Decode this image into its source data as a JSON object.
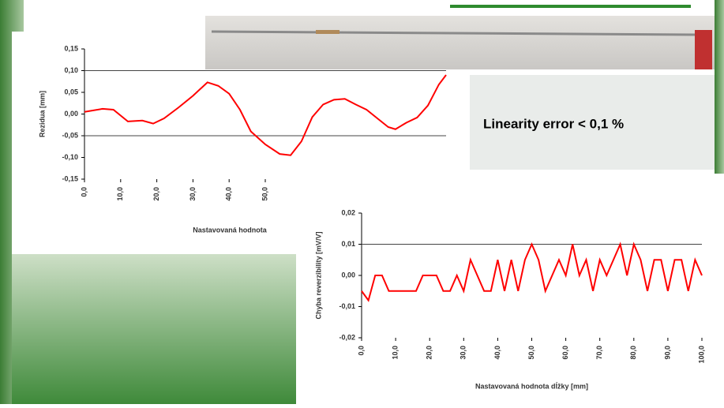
{
  "callout": "Linearity error < 0,1 %",
  "chart_data": [
    {
      "type": "line",
      "ylabel": "Rezidua [mm]",
      "xlabel": "Nastavovaná hodnota",
      "xlim": [
        0,
        100
      ],
      "ylim": [
        -0.15,
        0.15
      ],
      "xticks": [
        {
          "value": 0,
          "label": "0,0"
        },
        {
          "value": 10,
          "label": "10,0"
        },
        {
          "value": 20,
          "label": "20,0"
        },
        {
          "value": 30,
          "label": "30,0"
        },
        {
          "value": 40,
          "label": "40,0"
        },
        {
          "value": 50,
          "label": "50,0"
        }
      ],
      "yticks": [
        {
          "value": 0.15,
          "label": "0,15"
        },
        {
          "value": 0.1,
          "label": "0,10"
        },
        {
          "value": 0.05,
          "label": "0,05"
        },
        {
          "value": 0,
          "label": "0,00"
        },
        {
          "value": -0.05,
          "label": "-0,05"
        },
        {
          "value": -0.1,
          "label": "-0,10"
        },
        {
          "value": -0.15,
          "label": "-0,15"
        }
      ],
      "reference_lines": [
        0.1,
        -0.05
      ],
      "x": [
        0,
        5,
        8,
        12,
        16,
        19,
        22,
        26,
        30,
        34,
        37,
        40,
        43,
        46,
        50,
        54,
        57,
        60,
        63,
        66,
        69,
        72,
        75,
        78,
        81,
        84,
        86,
        89,
        92,
        95,
        98,
        100
      ],
      "series": [
        {
          "color": "#ff0000",
          "values": [
            0.005,
            0.012,
            0.01,
            -0.017,
            -0.015,
            -0.022,
            -0.01,
            0.015,
            0.042,
            0.073,
            0.065,
            0.047,
            0.01,
            -0.04,
            -0.07,
            -0.092,
            -0.095,
            -0.063,
            -0.007,
            0.022,
            0.033,
            0.035,
            0.022,
            0.01,
            -0.01,
            -0.03,
            -0.035,
            -0.02,
            -0.008,
            0.02,
            0.068,
            0.09
          ]
        }
      ]
    },
    {
      "type": "line",
      "ylabel": "Chyba reverzibility [mV/V]",
      "xlabel": "Nastavovaná hodnota dĺžky [mm]",
      "xlim": [
        0,
        100
      ],
      "ylim": [
        -0.02,
        0.02
      ],
      "xticks": [
        {
          "value": 0,
          "label": "0,0"
        },
        {
          "value": 10,
          "label": "10,0"
        },
        {
          "value": 20,
          "label": "20,0"
        },
        {
          "value": 30,
          "label": "30,0"
        },
        {
          "value": 40,
          "label": "40,0"
        },
        {
          "value": 50,
          "label": "50,0"
        },
        {
          "value": 60,
          "label": "60,0"
        },
        {
          "value": 70,
          "label": "70,0"
        },
        {
          "value": 80,
          "label": "80,0"
        },
        {
          "value": 90,
          "label": "90,0"
        },
        {
          "value": 100,
          "label": "100,0"
        }
      ],
      "yticks": [
        {
          "value": 0.02,
          "label": "0,02"
        },
        {
          "value": 0.01,
          "label": "0,01"
        },
        {
          "value": 0,
          "label": "0,00"
        },
        {
          "value": -0.01,
          "label": "-0,01"
        },
        {
          "value": -0.02,
          "label": "-0,02"
        }
      ],
      "reference_lines": [
        0.01
      ],
      "x": [
        0,
        2,
        4,
        6,
        8,
        10,
        12,
        14,
        16,
        18,
        20,
        22,
        24,
        26,
        28,
        30,
        32,
        34,
        36,
        38,
        40,
        42,
        44,
        46,
        48,
        50,
        52,
        54,
        56,
        58,
        60,
        62,
        64,
        66,
        68,
        70,
        72,
        74,
        76,
        78,
        80,
        82,
        84,
        86,
        88,
        90,
        92,
        94,
        96,
        98,
        100
      ],
      "series": [
        {
          "color": "#ff0000",
          "values": [
            -0.005,
            -0.008,
            0,
            0,
            -0.005,
            -0.005,
            -0.005,
            -0.005,
            -0.005,
            0,
            0,
            0,
            -0.005,
            -0.005,
            0,
            -0.005,
            0.005,
            0,
            -0.005,
            -0.005,
            0.005,
            -0.005,
            0.005,
            -0.005,
            0.005,
            0.01,
            0.005,
            -0.005,
            0,
            0.005,
            0,
            0.01,
            0,
            0.005,
            -0.005,
            0.005,
            0,
            0.005,
            0.01,
            0,
            0.01,
            0.005,
            -0.005,
            0.005,
            0.005,
            -0.005,
            0.005,
            0.005,
            -0.005,
            0.005,
            0
          ]
        }
      ]
    }
  ]
}
